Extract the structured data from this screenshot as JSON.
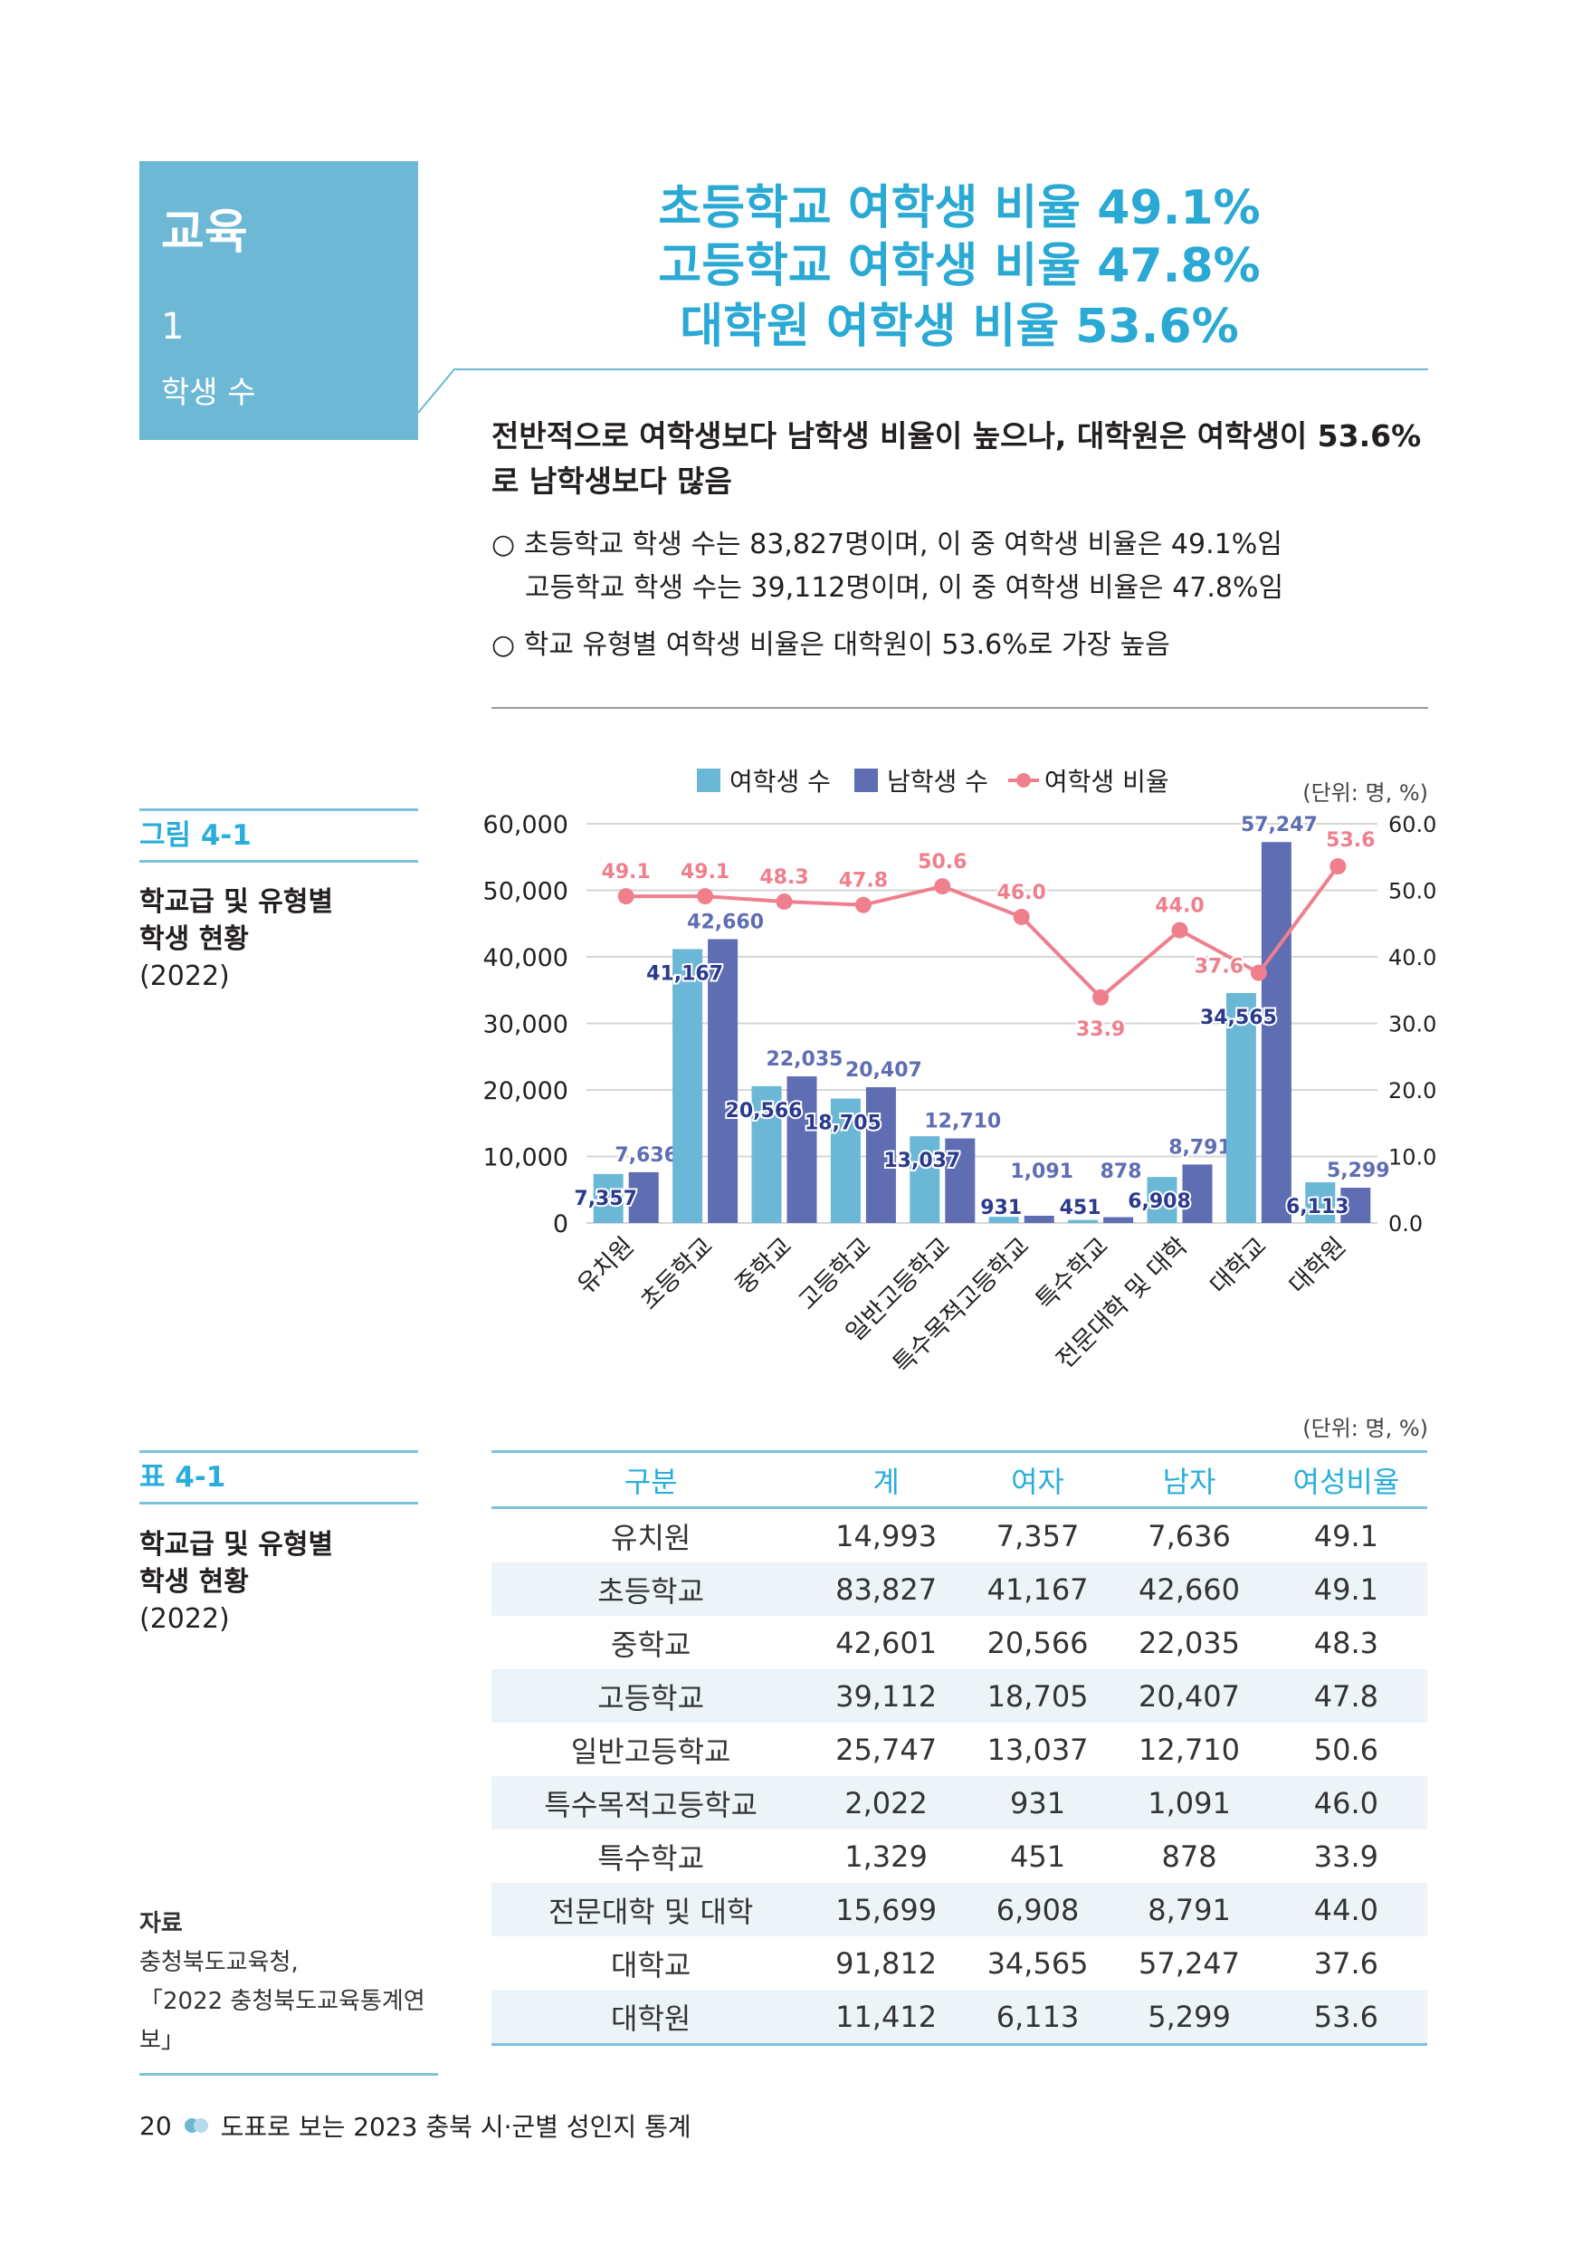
{
  "section": {
    "title": "교육",
    "number": "1",
    "subtitle": "학생 수"
  },
  "headlines": [
    "초등학교 여학생 비율 49.1%",
    "고등학교 여학생 비율 47.8%",
    "대학원 여학생 비율 53.6%"
  ],
  "summary": "전반적으로 여학생보다 남학생 비율이 높으나, 대학원은 여학생이 53.6%로 남학생보다 많음",
  "bullets": [
    "○ 초등학교 학생 수는 83,827명이며, 이 중 여학생 비율은 49.1%임",
    "고등학교 학생 수는 39,112명이며, 이 중 여학생 비율은 47.8%임",
    "○ 학교 유형별 여학생 비율은 대학원이 53.6%로 가장 높음"
  ],
  "figure": {
    "label": "그림 4-1",
    "title_lines": [
      "학교급 및 유형별",
      "학생 현황"
    ],
    "year": "(2022)"
  },
  "chart_data": {
    "type": "bar+line",
    "unit": "(단위: 명, %)",
    "categories": [
      "유치원",
      "초등학교",
      "중학교",
      "고등학교",
      "일반고등학교",
      "특수목적고등학교",
      "특수학교",
      "전문대학 및 대학",
      "대학교",
      "대학원"
    ],
    "series": [
      {
        "name": "여학생 수",
        "type": "bar",
        "axis": "left",
        "color": "#6bb8d6",
        "values": [
          7357,
          41167,
          20566,
          18705,
          13037,
          931,
          451,
          6908,
          34565,
          6113
        ],
        "labels": [
          "7,357",
          "41,167",
          "20,566",
          "18,705",
          "13,037",
          "931",
          "451",
          "6,908",
          "34,565",
          "6,113"
        ]
      },
      {
        "name": "남학생 수",
        "type": "bar",
        "axis": "left",
        "color": "#5f6db3",
        "values": [
          7636,
          42660,
          22035,
          20407,
          12710,
          1091,
          878,
          8791,
          57247,
          5299
        ],
        "labels": [
          "7,636",
          "42,660",
          "22,035",
          "20,407",
          "12,710",
          "1,091",
          "878",
          "8,791",
          "57,247",
          "5,299"
        ]
      },
      {
        "name": "여학생 비율",
        "type": "line",
        "axis": "right",
        "color": "#f07f8e",
        "values": [
          49.1,
          49.1,
          48.3,
          47.8,
          50.6,
          46.0,
          33.9,
          44.0,
          37.6,
          53.6
        ],
        "labels": [
          "49.1",
          "49.1",
          "48.3",
          "47.8",
          "50.6",
          "46.0",
          "33.9",
          "44.0",
          "37.6",
          "53.6"
        ]
      }
    ],
    "y_left": {
      "range": [
        0,
        60000
      ],
      "ticks": [
        "0",
        "10,000",
        "20,000",
        "30,000",
        "40,000",
        "50,000",
        "60,000"
      ]
    },
    "y_right": {
      "range": [
        0,
        60
      ],
      "ticks": [
        "0.0",
        "10.0",
        "20.0",
        "30.0",
        "40.0",
        "50.0",
        "60.0"
      ]
    },
    "grid": true,
    "legend": "top"
  },
  "table": {
    "label": "표 4-1",
    "title_lines": [
      "학교급 및 유형별",
      "학생 현황"
    ],
    "year": "(2022)",
    "unit": "(단위: 명, %)",
    "headers": [
      "구분",
      "계",
      "여자",
      "남자",
      "여성비율"
    ],
    "rows": [
      [
        "유치원",
        "14,993",
        "7,357",
        "7,636",
        "49.1"
      ],
      [
        "초등학교",
        "83,827",
        "41,167",
        "42,660",
        "49.1"
      ],
      [
        "중학교",
        "42,601",
        "20,566",
        "22,035",
        "48.3"
      ],
      [
        "고등학교",
        "39,112",
        "18,705",
        "20,407",
        "47.8"
      ],
      [
        "일반고등학교",
        "25,747",
        "13,037",
        "12,710",
        "50.6"
      ],
      [
        "특수목적고등학교",
        "2,022",
        "931",
        "1,091",
        "46.0"
      ],
      [
        "특수학교",
        "1,329",
        "451",
        "878",
        "33.9"
      ],
      [
        "전문대학 및 대학",
        "15,699",
        "6,908",
        "8,791",
        "44.0"
      ],
      [
        "대학교",
        "91,812",
        "34,565",
        "57,247",
        "37.6"
      ],
      [
        "대학원",
        "11,412",
        "6,113",
        "5,299",
        "53.6"
      ]
    ]
  },
  "source": {
    "label": "자료",
    "lines": [
      "충청북도교육청,",
      "「2022 충청북도교육통계연보」"
    ]
  },
  "footer": {
    "page": "20",
    "title": "도표로 보는 2023 충북 시·군별 성인지 통계"
  },
  "colors": {
    "accent": "#29a9d4",
    "box": "#6cb8d5",
    "female": "#6bb8d6",
    "male": "#5f6db3",
    "ratio": "#f07f8e"
  }
}
